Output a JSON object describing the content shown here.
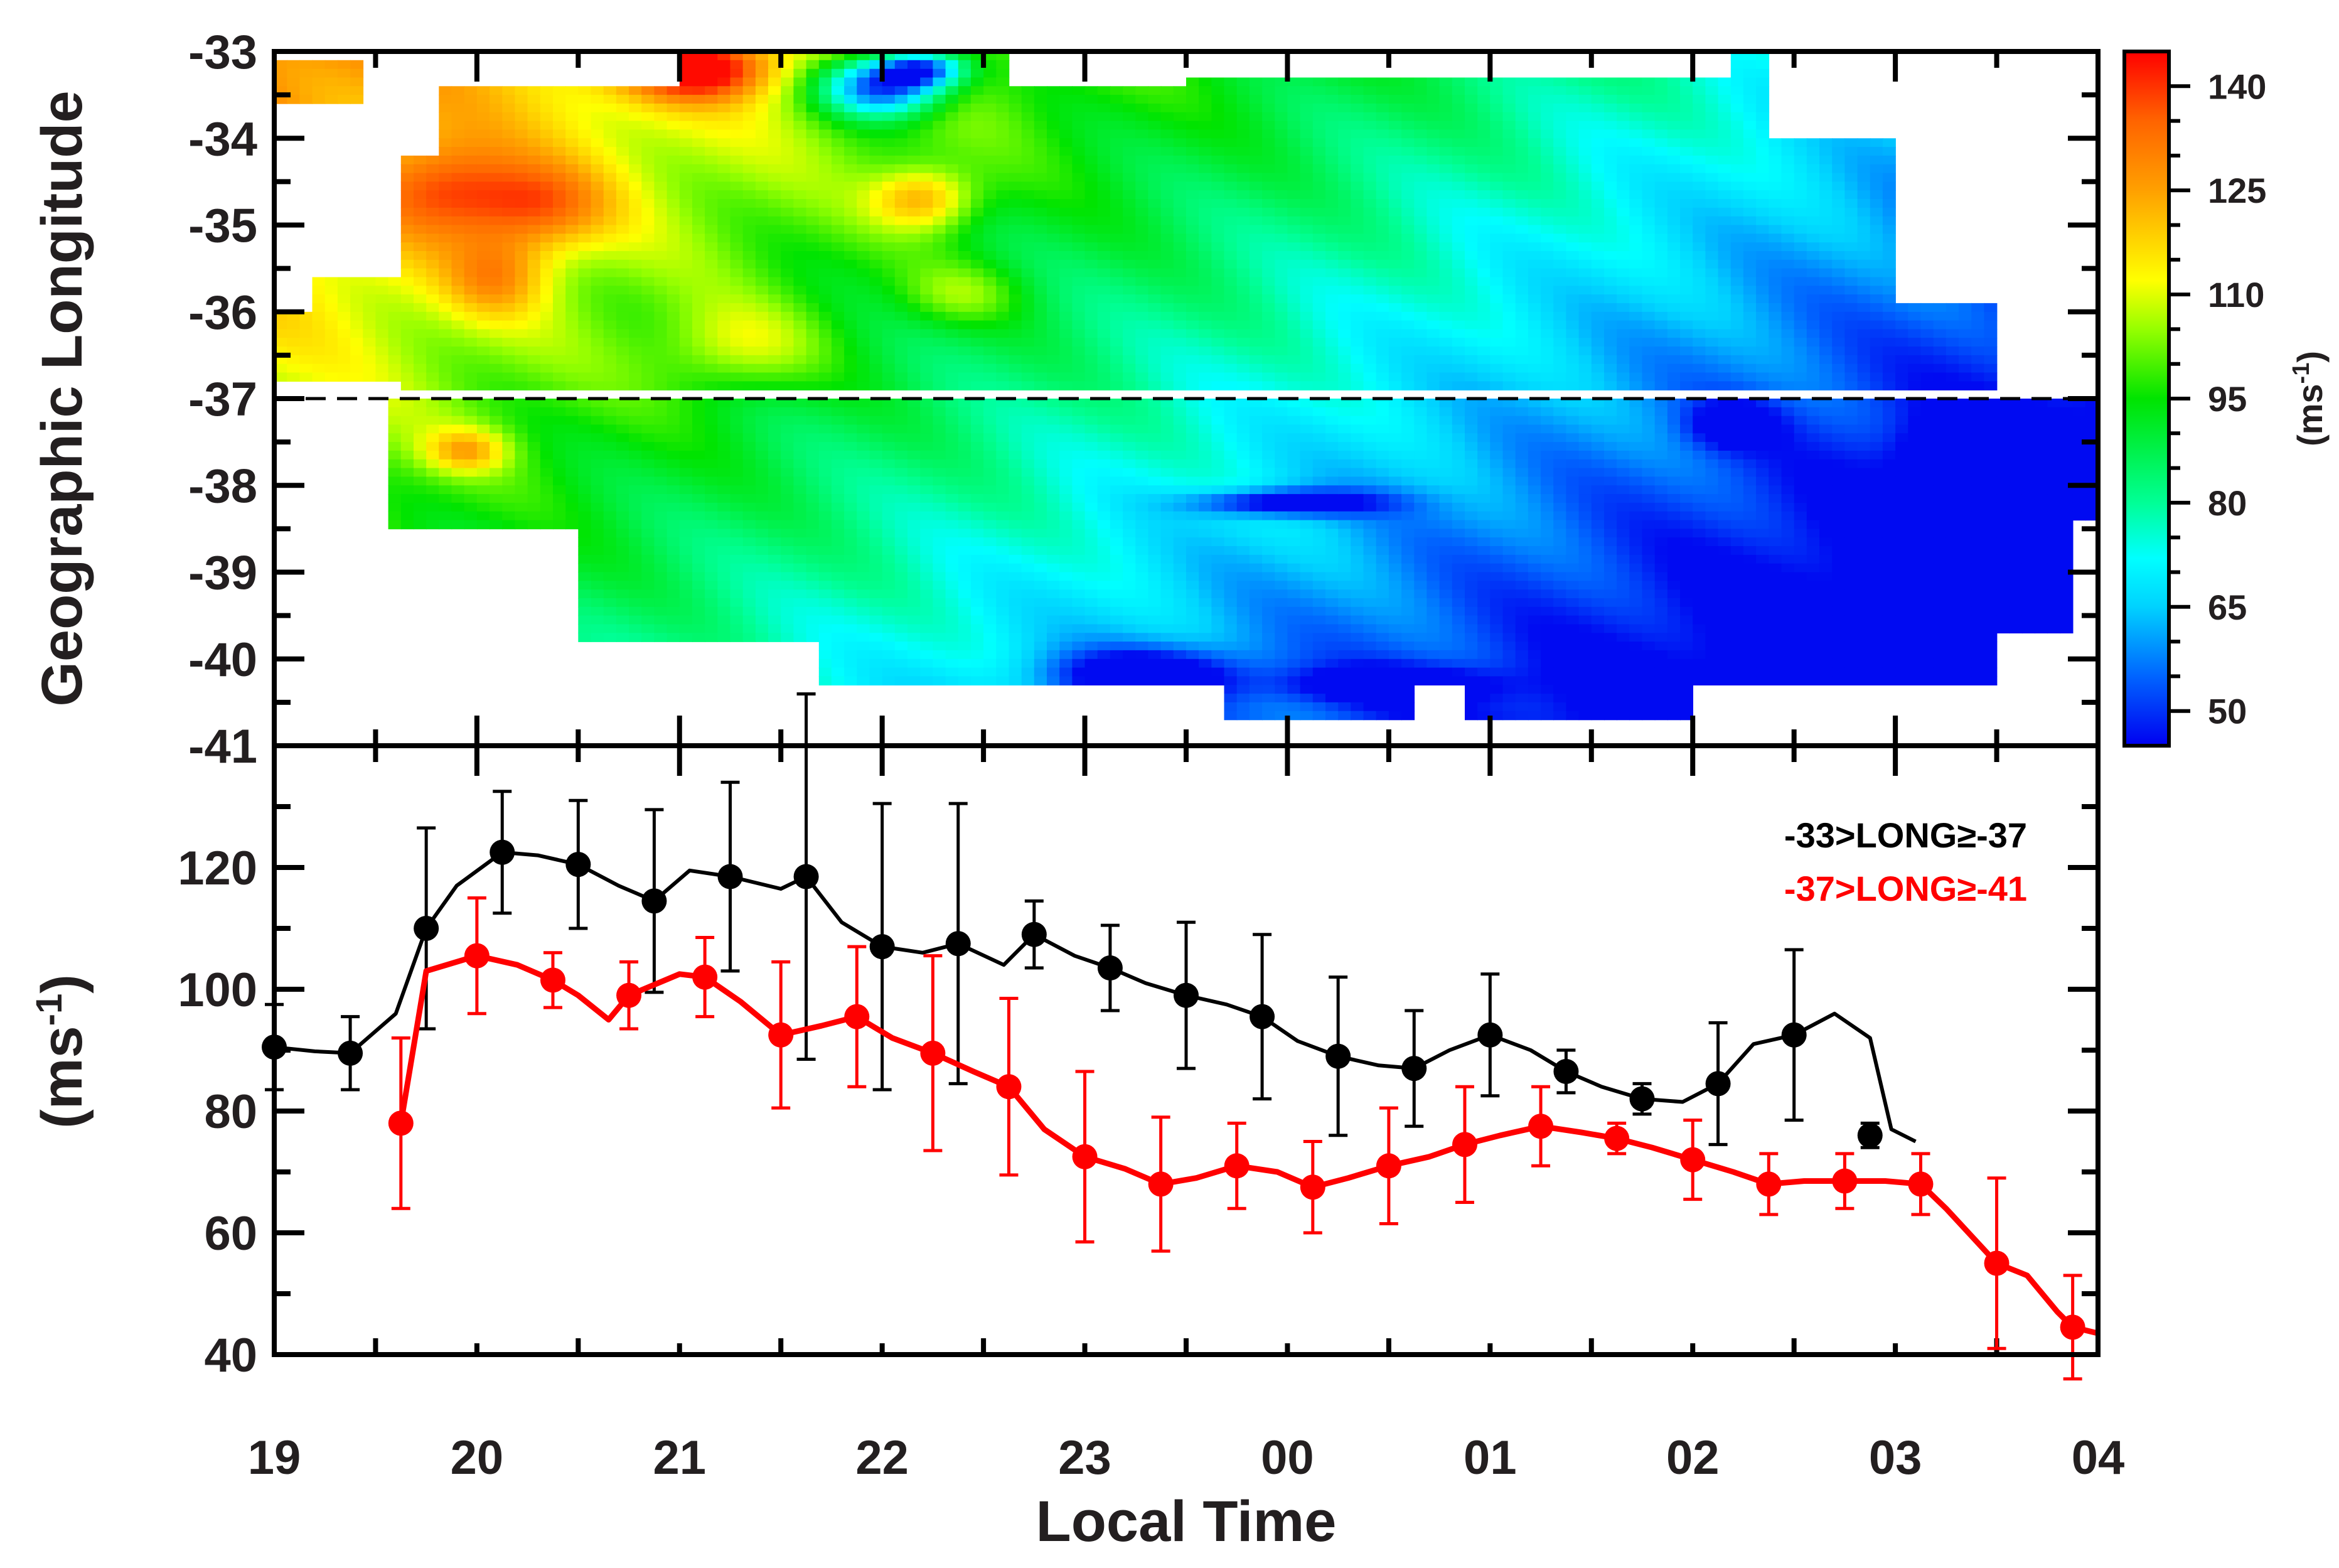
{
  "chart_data": [
    {
      "type": "heatmap",
      "ylabel": "Geographic Longitude",
      "y_ticks": [
        "-33",
        "-34",
        "-35",
        "-36",
        "-37",
        "-38",
        "-39",
        "-40",
        "-41"
      ],
      "ylim": [
        -41,
        -33
      ],
      "xlim": [
        19,
        28
      ],
      "reference_line": {
        "y": -37,
        "style": "dashed"
      },
      "colorbar": {
        "label": "(ms-1)",
        "ticks": [
          "50",
          "65",
          "80",
          "95",
          "110",
          "125",
          "140"
        ],
        "range": [
          45,
          145
        ]
      },
      "colorscale": [
        [
          45,
          "#0000f0"
        ],
        [
          55,
          "#0064ff"
        ],
        [
          65,
          "#00d2ff"
        ],
        [
          72,
          "#00ffff"
        ],
        [
          80,
          "#00ff96"
        ],
        [
          95,
          "#00e400"
        ],
        [
          105,
          "#96ff00"
        ],
        [
          112,
          "#ffff00"
        ],
        [
          125,
          "#ffa000"
        ],
        [
          135,
          "#ff6400"
        ],
        [
          145,
          "#ff0000"
        ]
      ]
    },
    {
      "type": "line",
      "xlabel": "Local Time",
      "ylabel": "(ms-1)",
      "x_ticks": [
        "19",
        "20",
        "21",
        "22",
        "23",
        "00",
        "01",
        "02",
        "03",
        "04"
      ],
      "y_ticks": [
        "40",
        "60",
        "80",
        "100",
        "120"
      ],
      "ylim": [
        40,
        140
      ],
      "xlim": [
        19,
        28
      ],
      "series": [
        {
          "name": "-33>LONG≥-37",
          "color": "#000000",
          "x": [
            19.0,
            19.375,
            19.75,
            20.125,
            20.5,
            20.875,
            21.25,
            21.625,
            22.0,
            22.375,
            22.75,
            23.125,
            23.5,
            23.875,
            24.25,
            24.625,
            25.0,
            25.375,
            25.75,
            26.125,
            26.5,
            26.875
          ],
          "y": [
            90.5,
            89.5,
            110,
            122.5,
            120.5,
            114.5,
            118.5,
            118.5,
            107,
            107.5,
            109,
            103.5,
            99,
            95.5,
            89,
            87,
            92.5,
            86.5,
            82,
            84.5,
            92.5,
            76
          ],
          "error": [
            7,
            6,
            16.5,
            10,
            10.5,
            15,
            15.5,
            30,
            23.5,
            23,
            5.5,
            7,
            12,
            13.5,
            13,
            9.5,
            10,
            3.5,
            2.5,
            10,
            14,
            2
          ],
          "curve": [
            [
              19.0,
              90.5
            ],
            [
              19.2,
              89.8
            ],
            [
              19.375,
              89.5
            ],
            [
              19.6,
              96
            ],
            [
              19.75,
              110
            ],
            [
              19.9,
              117
            ],
            [
              20.125,
              122.5
            ],
            [
              20.3,
              122
            ],
            [
              20.5,
              120.5
            ],
            [
              20.7,
              117
            ],
            [
              20.875,
              114.5
            ],
            [
              21.05,
              119.5
            ],
            [
              21.25,
              118.5
            ],
            [
              21.5,
              116.5
            ],
            [
              21.625,
              118.5
            ],
            [
              21.8,
              111
            ],
            [
              22.0,
              107
            ],
            [
              22.2,
              106
            ],
            [
              22.375,
              107.5
            ],
            [
              22.6,
              104
            ],
            [
              22.75,
              109
            ],
            [
              22.95,
              105.5
            ],
            [
              23.125,
              103.5
            ],
            [
              23.3,
              101
            ],
            [
              23.5,
              99
            ],
            [
              23.7,
              97.5
            ],
            [
              23.875,
              95.5
            ],
            [
              24.05,
              91.5
            ],
            [
              24.25,
              89
            ],
            [
              24.45,
              87.5
            ],
            [
              24.625,
              87
            ],
            [
              24.8,
              90
            ],
            [
              25.0,
              92.5
            ],
            [
              25.2,
              90
            ],
            [
              25.375,
              86.5
            ],
            [
              25.55,
              84
            ],
            [
              25.75,
              82
            ],
            [
              25.95,
              81.5
            ],
            [
              26.125,
              84.5
            ],
            [
              26.3,
              91
            ],
            [
              26.5,
              92.5
            ],
            [
              26.7,
              96
            ],
            [
              26.875,
              92
            ],
            [
              26.98,
              77
            ],
            [
              27.1,
              75
            ]
          ]
        },
        {
          "name": "-37>LONG≥-41",
          "color": "#ff0000",
          "x": [
            19.625,
            20.0,
            20.375,
            20.75,
            21.125,
            21.5,
            21.875,
            22.25,
            22.625,
            23.0,
            23.375,
            23.75,
            24.125,
            24.5,
            24.875,
            25.25,
            25.625,
            26.0,
            26.375,
            26.75,
            27.125,
            27.5,
            27.875
          ],
          "y": [
            78,
            105.5,
            101.5,
            99,
            102,
            92.5,
            95.5,
            89.5,
            84,
            72.5,
            68,
            71,
            67.5,
            71,
            74.5,
            77.5,
            75.5,
            72,
            68,
            68.5,
            68,
            55,
            44.5
          ],
          "error": [
            14,
            9.5,
            4.5,
            5.5,
            6.5,
            12,
            11.5,
            16,
            14.5,
            14,
            11,
            7,
            7.5,
            9.5,
            9.5,
            6.5,
            2.5,
            6.5,
            5,
            4.5,
            5,
            14,
            8.5
          ],
          "curve": [
            [
              19.625,
              78
            ],
            [
              19.75,
              103
            ],
            [
              20.0,
              105.5
            ],
            [
              20.2,
              104
            ],
            [
              20.375,
              101.5
            ],
            [
              20.5,
              99
            ],
            [
              20.65,
              95
            ],
            [
              20.75,
              99
            ],
            [
              21.0,
              102.5
            ],
            [
              21.125,
              102
            ],
            [
              21.3,
              98
            ],
            [
              21.5,
              92.5
            ],
            [
              21.7,
              94
            ],
            [
              21.875,
              95.5
            ],
            [
              22.05,
              92
            ],
            [
              22.25,
              89.5
            ],
            [
              22.45,
              86.5
            ],
            [
              22.625,
              84
            ],
            [
              22.8,
              77
            ],
            [
              23.0,
              72.5
            ],
            [
              23.2,
              70.5
            ],
            [
              23.375,
              68
            ],
            [
              23.55,
              69
            ],
            [
              23.75,
              71
            ],
            [
              23.95,
              70
            ],
            [
              24.125,
              67.5
            ],
            [
              24.3,
              69
            ],
            [
              24.5,
              71
            ],
            [
              24.7,
              72.5
            ],
            [
              24.875,
              74.5
            ],
            [
              25.05,
              76
            ],
            [
              25.25,
              77.5
            ],
            [
              25.45,
              76.5
            ],
            [
              25.625,
              75.5
            ],
            [
              25.8,
              74
            ],
            [
              26.0,
              72
            ],
            [
              26.2,
              70
            ],
            [
              26.375,
              68
            ],
            [
              26.55,
              68.5
            ],
            [
              26.75,
              68.5
            ],
            [
              26.95,
              68.5
            ],
            [
              27.125,
              68
            ],
            [
              27.25,
              64
            ],
            [
              27.5,
              55
            ],
            [
              27.65,
              53
            ],
            [
              27.8,
              47
            ],
            [
              27.875,
              44.5
            ],
            [
              28.0,
              43.5
            ]
          ]
        }
      ],
      "legend_position": "top-right"
    }
  ]
}
